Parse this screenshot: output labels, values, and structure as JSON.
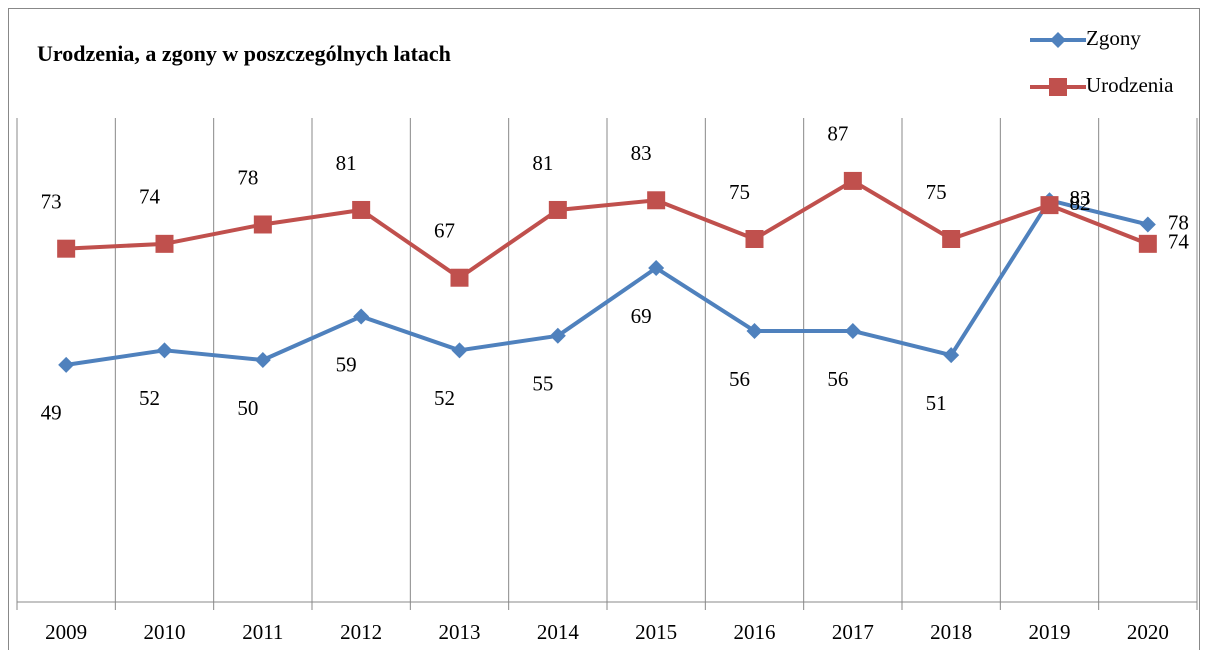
{
  "chart_data": {
    "type": "line",
    "title": "Urodzenia, a zgony w poszczególnych latach",
    "categories": [
      "2009",
      "2010",
      "2011",
      "2012",
      "2013",
      "2014",
      "2015",
      "2016",
      "2017",
      "2018",
      "2019",
      "2020"
    ],
    "series": [
      {
        "name": "Zgony",
        "color": "#4f81bd",
        "marker": "diamond",
        "values": [
          49,
          52,
          50,
          59,
          52,
          55,
          69,
          56,
          56,
          51,
          83,
          78
        ]
      },
      {
        "name": "Urodzenia",
        "color": "#c0504d",
        "marker": "square",
        "values": [
          73,
          74,
          78,
          81,
          67,
          81,
          83,
          75,
          87,
          75,
          82,
          74
        ]
      }
    ],
    "ylim": [
      0,
      100
    ],
    "legend": "top-right"
  }
}
